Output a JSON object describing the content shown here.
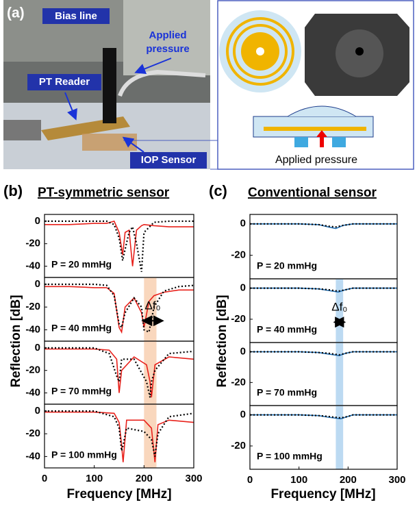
{
  "panels": {
    "a": {
      "label": "(a)",
      "bias_line": "Bias line",
      "applied_pressure": [
        "Applied",
        "pressure"
      ],
      "pt_reader": "PT Reader",
      "iop_sensor": "IOP Sensor",
      "inset_caption": "Applied pressure"
    },
    "b": {
      "label": "(b)",
      "title": "PT-symmetric sensor",
      "ylabel": "Reflection [dB]",
      "xlabel": "Frequency [MHz]"
    },
    "c": {
      "label": "(c)",
      "title": "Conventional sensor",
      "ylabel": "Reflection [dB]",
      "xlabel": "Frequency [MHz]"
    }
  },
  "chart_data": [
    {
      "type": "line",
      "label": "P = 20 mmHg",
      "xlim": [
        0,
        300
      ],
      "ylim": [
        -50,
        6
      ],
      "yticks": [
        0,
        -20,
        -40
      ],
      "x": [
        0,
        50,
        100,
        125,
        140,
        150,
        157,
        162,
        170,
        177,
        185,
        195,
        200,
        220,
        250,
        300
      ],
      "series": [
        {
          "color": "#e8201a",
          "style": "solid",
          "values": [
            -3,
            -3,
            -2,
            -2,
            0,
            -10,
            -30,
            -10,
            -8,
            -40,
            -8,
            -4,
            -3,
            -4,
            -5,
            -5
          ]
        },
        {
          "color": "#000000",
          "style": "dotted",
          "values": [
            0,
            0,
            0,
            0,
            -3,
            -15,
            -35,
            -25,
            -10,
            -5,
            -20,
            -45,
            -10,
            -1,
            0,
            0
          ]
        }
      ]
    },
    {
      "type": "line",
      "label": "P = 40 mmHg",
      "xlim": [
        0,
        300
      ],
      "ylim": [
        -50,
        6
      ],
      "yticks": [
        0,
        -20,
        -40
      ],
      "span": [
        200,
        225
      ],
      "annotation": "Δf₀",
      "x": [
        0,
        50,
        100,
        125,
        140,
        150,
        155,
        162,
        180,
        195,
        200,
        210,
        220,
        240,
        270,
        300
      ],
      "series": [
        {
          "color": "#e8201a",
          "style": "solid",
          "values": [
            -2,
            -2,
            -3,
            -3,
            -8,
            -38,
            -42,
            -20,
            -12,
            -25,
            -38,
            -15,
            -10,
            -7,
            -5,
            -5
          ]
        },
        {
          "color": "#000000",
          "style": "dotted",
          "values": [
            0,
            0,
            0,
            -1,
            -10,
            -35,
            -38,
            -25,
            -12,
            -20,
            -40,
            -42,
            -20,
            -6,
            -2,
            -1
          ]
        }
      ]
    },
    {
      "type": "line",
      "label": "P = 70 mmHg",
      "xlim": [
        0,
        300
      ],
      "ylim": [
        -50,
        6
      ],
      "yticks": [
        0,
        -20,
        -40
      ],
      "span": [
        200,
        225
      ],
      "x": [
        0,
        50,
        100,
        130,
        145,
        150,
        155,
        180,
        205,
        212,
        215,
        222,
        250,
        300
      ],
      "series": [
        {
          "color": "#e8201a",
          "style": "solid",
          "values": [
            -1,
            -1,
            -1,
            -2,
            -10,
            -40,
            -20,
            -8,
            -15,
            -30,
            -44,
            -15,
            -8,
            -10
          ]
        },
        {
          "color": "#000000",
          "style": "dotted",
          "values": [
            0,
            0,
            0,
            -5,
            -25,
            -30,
            -10,
            -10,
            -30,
            -44,
            -30,
            -20,
            -5,
            -3
          ]
        }
      ]
    },
    {
      "type": "line",
      "label": "P = 100 mmHg",
      "xlim": [
        0,
        300
      ],
      "ylim": [
        -50,
        6
      ],
      "yticks": [
        0,
        -20,
        -40
      ],
      "span": [
        200,
        225
      ],
      "xticks": [
        0,
        100,
        200,
        300
      ],
      "x": [
        0,
        50,
        100,
        140,
        150,
        155,
        158,
        165,
        200,
        215,
        222,
        228,
        250,
        300
      ],
      "series": [
        {
          "color": "#e8201a",
          "style": "solid",
          "values": [
            -1,
            -1,
            -1,
            -2,
            -10,
            -30,
            -45,
            -8,
            -8,
            -15,
            -45,
            -12,
            -8,
            -10
          ]
        },
        {
          "color": "#000000",
          "style": "dotted",
          "values": [
            0,
            0,
            0,
            -5,
            -15,
            -35,
            -30,
            -15,
            -18,
            -25,
            -40,
            -20,
            -5,
            -2
          ]
        }
      ]
    },
    {
      "type": "line",
      "label": "P = 20 mmHg",
      "xlim": [
        0,
        300
      ],
      "ylim": [
        -35,
        6
      ],
      "yticks": [
        0,
        -20
      ],
      "x": [
        0,
        100,
        140,
        160,
        175,
        190,
        210,
        250,
        300
      ],
      "series": [
        {
          "color": "#1f6fb5",
          "style": "solid",
          "values": [
            0,
            0,
            -0.5,
            -2,
            -3,
            -1,
            0,
            0,
            0
          ]
        },
        {
          "color": "#000000",
          "style": "dotted",
          "values": [
            0,
            0,
            -0.5,
            -1.5,
            -2,
            -1,
            0,
            0,
            0
          ]
        }
      ]
    },
    {
      "type": "line",
      "label": "P = 40 mmHg",
      "xlim": [
        0,
        300
      ],
      "ylim": [
        -35,
        6
      ],
      "yticks": [
        0,
        -20
      ],
      "span": [
        175,
        190
      ],
      "annotation": "Δf₀",
      "x": [
        0,
        100,
        140,
        160,
        180,
        195,
        210,
        250,
        300
      ],
      "series": [
        {
          "color": "#1f6fb5",
          "style": "solid",
          "values": [
            0,
            0,
            -0.5,
            -1.5,
            -2.5,
            -1,
            0,
            0,
            0
          ]
        },
        {
          "color": "#000000",
          "style": "dotted",
          "values": [
            0,
            0,
            -0.5,
            -1,
            -2,
            -1,
            0,
            0,
            0
          ]
        }
      ]
    },
    {
      "type": "line",
      "label": "P = 70 mmHg",
      "xlim": [
        0,
        300
      ],
      "ylim": [
        -35,
        6
      ],
      "yticks": [
        0,
        -20
      ],
      "span": [
        175,
        190
      ],
      "x": [
        0,
        100,
        140,
        160,
        182,
        195,
        210,
        250,
        300
      ],
      "series": [
        {
          "color": "#1f6fb5",
          "style": "solid",
          "values": [
            0,
            0,
            -0.5,
            -1.5,
            -2.5,
            -1,
            0,
            0,
            0
          ]
        },
        {
          "color": "#000000",
          "style": "dotted",
          "values": [
            0,
            0,
            -0.5,
            -1,
            -2,
            -1,
            0,
            0,
            0
          ]
        }
      ]
    },
    {
      "type": "line",
      "label": "P = 100 mmHg",
      "xlim": [
        0,
        300
      ],
      "ylim": [
        -35,
        6
      ],
      "yticks": [
        0,
        -20
      ],
      "span": [
        175,
        190
      ],
      "xticks": [
        0,
        100,
        200,
        300
      ],
      "x": [
        0,
        100,
        140,
        160,
        185,
        200,
        210,
        250,
        300
      ],
      "series": [
        {
          "color": "#1f6fb5",
          "style": "solid",
          "values": [
            0,
            0,
            -0.5,
            -1.5,
            -2.5,
            -1,
            0,
            0,
            0
          ]
        },
        {
          "color": "#000000",
          "style": "dotted",
          "values": [
            0,
            0,
            -0.5,
            -1,
            -2,
            -1,
            0,
            0,
            0
          ]
        }
      ]
    }
  ]
}
